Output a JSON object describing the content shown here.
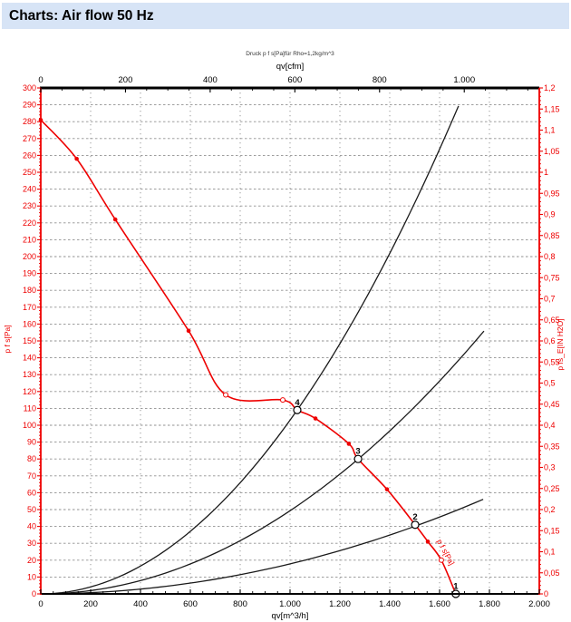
{
  "header": {
    "title": "Charts: Air flow 50 Hz"
  },
  "colors": {
    "header_bg": "#d7e4f6",
    "accent_red": "#ee0000",
    "curve_black": "#1a1a1a",
    "grid_gray": "#909090",
    "note_text": "#333333"
  },
  "chart_data": {
    "type": "line",
    "note": "Druck p f s[Pa]für Rho=1,2kg/m^3",
    "axes": {
      "top": {
        "title": "qv[cfm]",
        "unit_to_m3h": 1.699,
        "tick_values": [
          0,
          200,
          400,
          600,
          800,
          1000
        ],
        "tick_labels": [
          "0",
          "200",
          "400",
          "600",
          "800",
          "1.000"
        ],
        "minor_step": 50
      },
      "bottom": {
        "title": "qv[m^3/h]",
        "min": 0,
        "max": 2000,
        "tick_values": [
          0,
          200,
          400,
          600,
          800,
          1000,
          1200,
          1400,
          1600,
          1800,
          2000
        ],
        "tick_labels": [
          "0",
          "200",
          "400",
          "600",
          "800",
          "1.000",
          "1.200",
          "1.400",
          "1.600",
          "1.800",
          "2.000"
        ],
        "minor_step": 50
      },
      "left": {
        "title": "p f s[Pa]",
        "min": 0,
        "max": 300,
        "tick_values": [
          300,
          290,
          280,
          270,
          260,
          250,
          240,
          230,
          220,
          210,
          200,
          190,
          180,
          170,
          160,
          150,
          140,
          130,
          120,
          110,
          100,
          90,
          80,
          70,
          60,
          50,
          40,
          30,
          20,
          10,
          0
        ],
        "tick_labels": [
          "300",
          "290",
          "280",
          "270",
          "260",
          "250",
          "240",
          "230",
          "220",
          "210",
          "200",
          "190",
          "180",
          "170",
          "160",
          "150",
          "140",
          "130",
          "120",
          "110",
          "100",
          "90",
          "80",
          "70",
          "60",
          "50",
          "40",
          "30",
          "20",
          "10",
          "0"
        ],
        "minor_step": 2
      },
      "right": {
        "title": "p fs_E[IN H2O]",
        "min": 0,
        "max": 1.2,
        "tick_values": [
          1.2,
          1.15,
          1.1,
          1.05,
          1,
          0.95,
          0.9,
          0.85,
          0.8,
          0.75,
          0.7,
          0.65,
          0.6,
          0.55,
          0.5,
          0.45,
          0.4,
          0.35,
          0.3,
          0.25,
          0.2,
          0.15,
          0.1,
          0.05,
          0
        ],
        "tick_labels": [
          "1,2",
          "1,15",
          "1,1",
          "1,05",
          "1",
          "0,95",
          "0,9",
          "0,85",
          "0,8",
          "0,75",
          "0,7",
          "0,65",
          "0,6",
          "0,55",
          "0,5",
          "0,45",
          "0,4",
          "0,35",
          "0,3",
          "0,25",
          "0,2",
          "0,15",
          "0,1",
          "0,05",
          "0"
        ],
        "minor_step": 0.01
      }
    },
    "grid": {
      "x_step": 200,
      "y_step": 10
    },
    "fan_curve": {
      "name": "fan-pressure-curve",
      "label": "p f s[Pa]",
      "label_q": 1615,
      "label_p": 24,
      "label_angle": 62,
      "points": [
        [
          0,
          281
        ],
        [
          144,
          258
        ],
        [
          299,
          222
        ],
        [
          593,
          156
        ],
        [
          742,
          118
        ],
        [
          971,
          115
        ],
        [
          1029,
          109
        ],
        [
          1102,
          104
        ],
        [
          1236,
          89
        ],
        [
          1273,
          80
        ],
        [
          1389,
          62
        ],
        [
          1502,
          41
        ],
        [
          1553,
          31
        ],
        [
          1607,
          20
        ],
        [
          1665,
          0
        ]
      ],
      "markers": [
        {
          "q": 0,
          "p": 281,
          "style": "filled"
        },
        {
          "q": 144,
          "p": 258,
          "style": "filled"
        },
        {
          "q": 299,
          "p": 222,
          "style": "filled"
        },
        {
          "q": 593,
          "p": 156,
          "style": "filled"
        },
        {
          "q": 742,
          "p": 118,
          "style": "open"
        },
        {
          "q": 971,
          "p": 115,
          "style": "open"
        },
        {
          "q": 1102,
          "p": 104,
          "style": "filled"
        },
        {
          "q": 1236,
          "p": 89,
          "style": "filled"
        },
        {
          "q": 1389,
          "p": 62,
          "style": "filled"
        },
        {
          "q": 1553,
          "p": 31,
          "style": "filled"
        },
        {
          "q": 1607,
          "p": 20,
          "style": "open"
        }
      ]
    },
    "system_curves": [
      {
        "name": "system-curve-steep",
        "k": 0.000103,
        "q_end": 1676
      },
      {
        "name": "system-curve-middle",
        "k": 4.93e-05,
        "q_end": 1778
      },
      {
        "name": "system-curve-shallow",
        "k": 1.78e-05,
        "q_end": 1775
      }
    ],
    "operating_points": [
      {
        "label": "4",
        "q": 1029,
        "p": 109
      },
      {
        "label": "3",
        "q": 1273,
        "p": 80
      },
      {
        "label": "2",
        "q": 1502,
        "p": 41
      },
      {
        "label": "1",
        "q": 1665,
        "p": 0
      }
    ]
  }
}
